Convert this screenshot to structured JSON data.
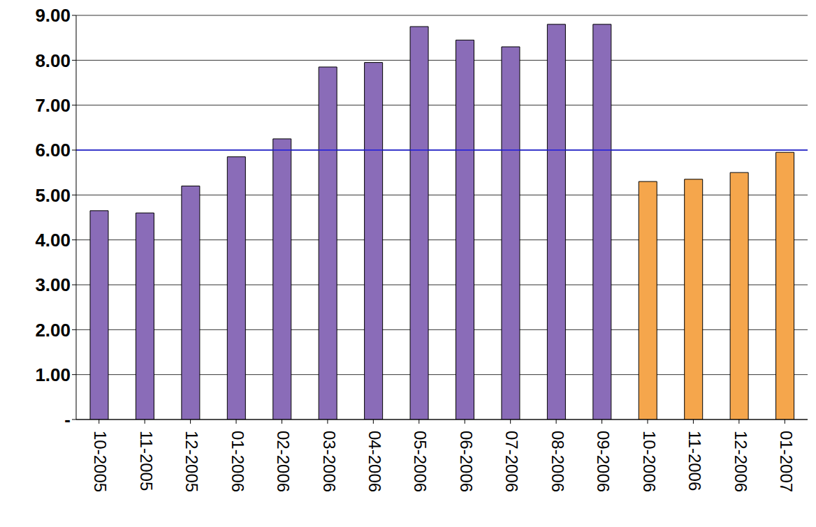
{
  "chart_data": {
    "type": "bar",
    "categories": [
      "10-2005",
      "11-2005",
      "12-2005",
      "01-2006",
      "02-2006",
      "03-2006",
      "04-2006",
      "05-2006",
      "06-2006",
      "07-2006",
      "08-2006",
      "09-2006",
      "10-2006",
      "11-2006",
      "12-2006",
      "01-2007"
    ],
    "values": [
      4.65,
      4.6,
      5.2,
      5.85,
      6.25,
      7.85,
      7.95,
      8.75,
      8.45,
      8.3,
      8.8,
      8.8,
      5.3,
      5.35,
      5.5,
      5.95
    ],
    "colors": [
      "#8a6cb8",
      "#8a6cb8",
      "#8a6cb8",
      "#8a6cb8",
      "#8a6cb8",
      "#8a6cb8",
      "#8a6cb8",
      "#8a6cb8",
      "#8a6cb8",
      "#8a6cb8",
      "#8a6cb8",
      "#8a6cb8",
      "#f5a64c",
      "#f5a64c",
      "#f5a64c",
      "#f5a64c"
    ],
    "ylim": [
      0,
      9
    ],
    "yticks": [
      {
        "value": 0,
        "label": "-"
      },
      {
        "value": 1,
        "label": "1.00"
      },
      {
        "value": 2,
        "label": "2.00"
      },
      {
        "value": 3,
        "label": "3.00"
      },
      {
        "value": 4,
        "label": "4.00"
      },
      {
        "value": 5,
        "label": "5.00"
      },
      {
        "value": 6,
        "label": "6.00"
      },
      {
        "value": 7,
        "label": "7.00"
      },
      {
        "value": 8,
        "label": "8.00"
      },
      {
        "value": 9,
        "label": "9.00"
      }
    ],
    "grid": true,
    "reference_line": 6.0
  }
}
